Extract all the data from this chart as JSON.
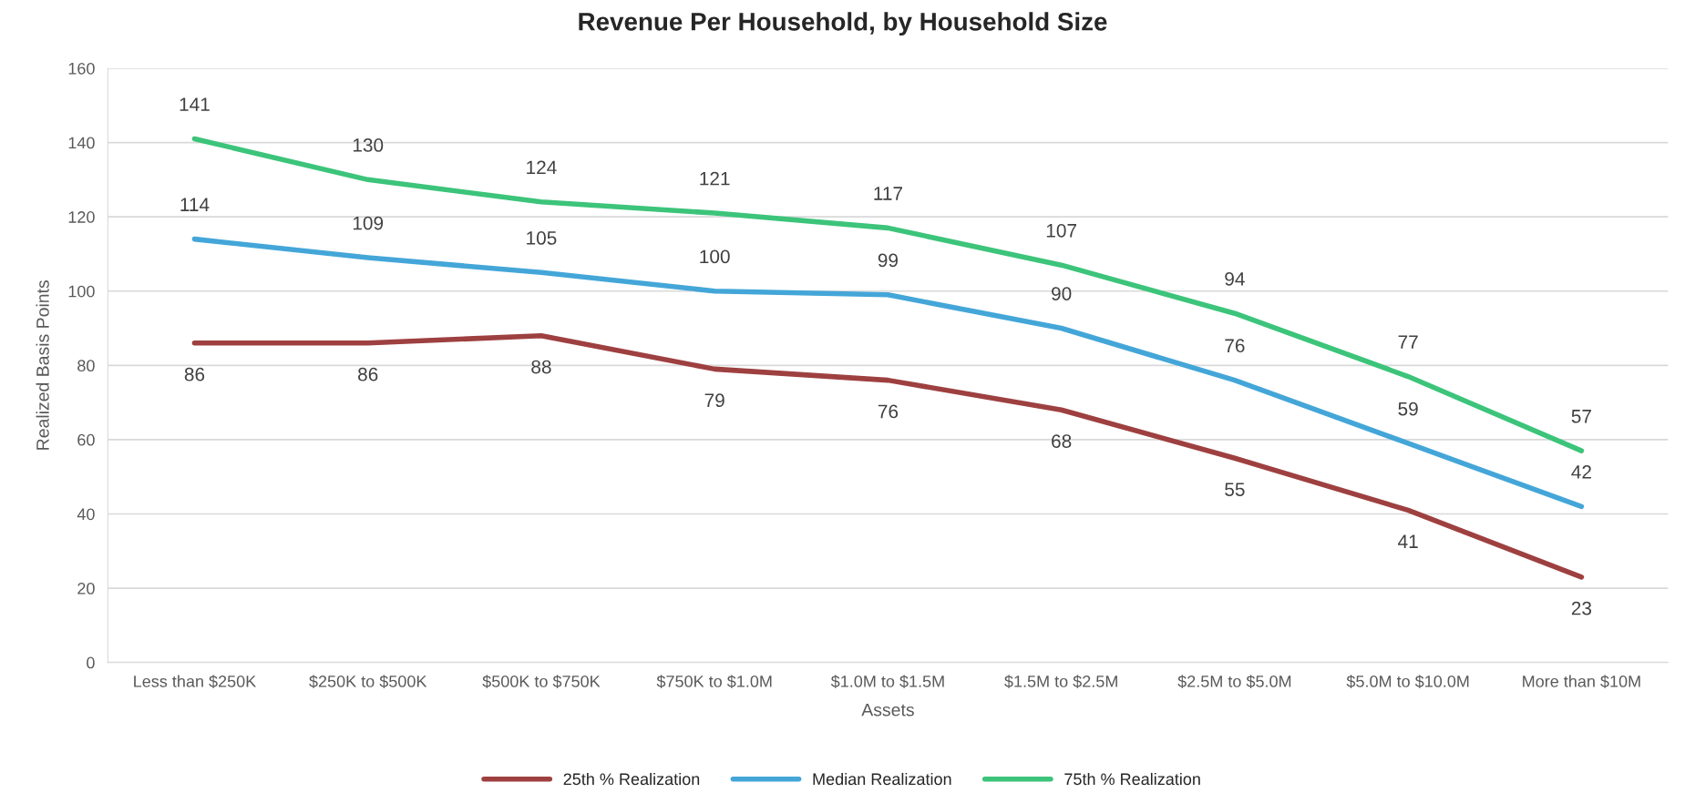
{
  "chart_data": {
    "type": "line",
    "title": "Revenue Per Household, by Household Size",
    "xlabel": "Assets",
    "ylabel": "Realized Basis Points",
    "categories": [
      "Less than $250K",
      "$250K to $500K",
      "$500K to $750K",
      "$750K to $1.0M",
      "$1.0M to $1.5M",
      "$1.5M to $2.5M",
      "$2.5M to $5.0M",
      "$5.0M to $10.0M",
      "More than $10M"
    ],
    "series": [
      {
        "name": "25th % Realization",
        "color": "#9e4040",
        "values": [
          86,
          86,
          88,
          79,
          76,
          68,
          55,
          41,
          23
        ]
      },
      {
        "name": "Median Realization",
        "color": "#44a6d8",
        "values": [
          114,
          109,
          105,
          100,
          99,
          90,
          76,
          59,
          42
        ]
      },
      {
        "name": "75th % Realization",
        "color": "#3cc47a",
        "values": [
          141,
          130,
          124,
          121,
          117,
          107,
          94,
          77,
          57
        ]
      }
    ],
    "ylim": [
      0,
      160
    ],
    "yticks": [
      0,
      20,
      40,
      60,
      80,
      100,
      120,
      140,
      160
    ],
    "grid": "y",
    "legend": "bottom",
    "data_labels": true,
    "marker": "none",
    "line_style": "solid"
  }
}
